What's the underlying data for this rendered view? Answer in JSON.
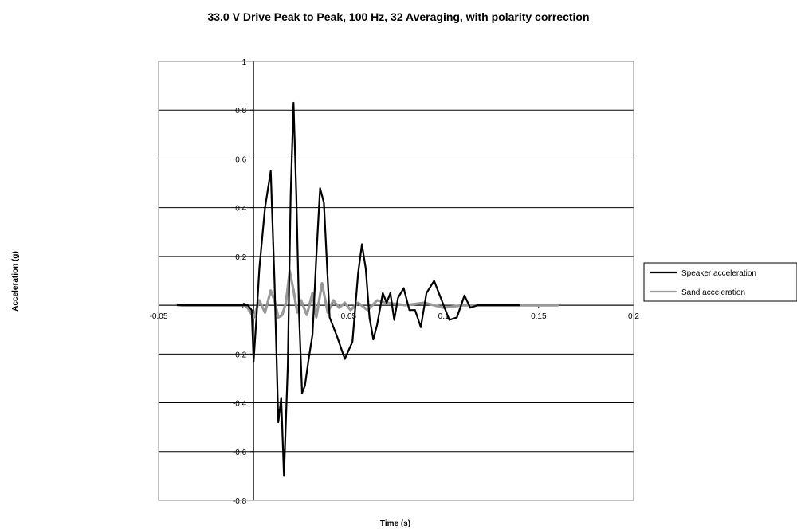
{
  "chart_data": {
    "type": "line",
    "title": "33.0 V Drive Peak to Peak, 100 Hz, 32 Averaging, with polarity correction",
    "xlabel": "Time (s)",
    "ylabel": "Acceleration (g)",
    "xlim": [
      -0.05,
      0.2
    ],
    "ylim": [
      -0.8,
      1
    ],
    "x_ticks": [
      -0.05,
      0,
      0.05,
      0.1,
      0.15,
      0.2
    ],
    "x_tick_labels": [
      "-0.05",
      "0",
      "0.05",
      "0.1",
      "0.15",
      "0.2"
    ],
    "y_ticks": [
      -0.8,
      -0.6,
      -0.4,
      -0.2,
      0,
      0.2,
      0.4,
      0.6,
      0.8,
      1
    ],
    "y_tick_labels": [
      "-0.8",
      "-0.6",
      "-0.4",
      "-0.2",
      "0",
      "0.2",
      "0.4",
      "0.6",
      "0.8",
      "1"
    ],
    "grid": "horizontal",
    "legend_position": "right",
    "series": [
      {
        "name": "Speaker acceleration",
        "color": "#000000",
        "x": [
          -0.04,
          -0.03,
          -0.02,
          -0.01,
          -0.006,
          -0.003,
          -0.001,
          0.0,
          0.0015,
          0.003,
          0.006,
          0.009,
          0.011,
          0.013,
          0.0145,
          0.016,
          0.018,
          0.0195,
          0.021,
          0.0225,
          0.024,
          0.0255,
          0.027,
          0.029,
          0.031,
          0.033,
          0.035,
          0.037,
          0.04,
          0.044,
          0.048,
          0.052,
          0.055,
          0.057,
          0.059,
          0.061,
          0.063,
          0.065,
          0.068,
          0.07,
          0.072,
          0.074,
          0.076,
          0.079,
          0.082,
          0.085,
          0.088,
          0.091,
          0.095,
          0.099,
          0.103,
          0.107,
          0.111,
          0.114,
          0.118,
          0.121,
          0.124,
          0.128,
          0.131,
          0.134,
          0.138,
          0.14
        ],
        "y": [
          0.0,
          0.0,
          0.0,
          0.0,
          0.0,
          0.0,
          -0.02,
          -0.23,
          -0.05,
          0.15,
          0.4,
          0.55,
          0.1,
          -0.48,
          -0.38,
          -0.7,
          -0.25,
          0.45,
          0.83,
          0.45,
          -0.05,
          -0.36,
          -0.33,
          -0.22,
          -0.12,
          0.2,
          0.48,
          0.42,
          -0.05,
          -0.13,
          -0.22,
          -0.15,
          0.13,
          0.25,
          0.15,
          -0.05,
          -0.14,
          -0.08,
          0.05,
          0.01,
          0.05,
          -0.06,
          0.03,
          0.07,
          -0.02,
          -0.02,
          -0.09,
          0.05,
          0.1,
          0.02,
          -0.06,
          -0.05,
          0.04,
          -0.01,
          0.0,
          0.0,
          0.0,
          0.0,
          0.0,
          0.0,
          0.0,
          0.0
        ]
      },
      {
        "name": "Sand acceleration",
        "color": "#999999",
        "x": [
          -0.038,
          -0.03,
          -0.02,
          -0.01,
          -0.004,
          0.0,
          0.003,
          0.006,
          0.009,
          0.011,
          0.013,
          0.015,
          0.017,
          0.019,
          0.021,
          0.023,
          0.025,
          0.028,
          0.031,
          0.033,
          0.036,
          0.039,
          0.042,
          0.045,
          0.048,
          0.051,
          0.055,
          0.06,
          0.065,
          0.07,
          0.08,
          0.09,
          0.1,
          0.11,
          0.12,
          0.13,
          0.14,
          0.15,
          0.16
        ],
        "y": [
          0.0,
          0.0,
          0.0,
          0.0,
          0.0,
          -0.05,
          0.02,
          -0.03,
          0.06,
          0.02,
          -0.05,
          -0.04,
          0.01,
          0.14,
          0.06,
          -0.03,
          0.02,
          -0.04,
          0.05,
          -0.05,
          0.09,
          -0.03,
          0.02,
          -0.01,
          0.01,
          -0.02,
          0.01,
          -0.02,
          0.02,
          0.01,
          0.0,
          0.01,
          -0.01,
          0.0,
          0.0,
          0.0,
          0.0,
          0.0,
          0.0
        ]
      }
    ]
  }
}
